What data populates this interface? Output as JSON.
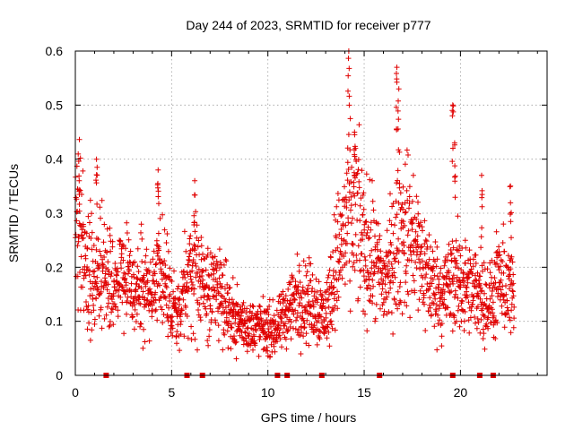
{
  "chart_data": {
    "type": "scatter",
    "title": "Day 244 of 2023, SRMTID for receiver p777",
    "xlabel": "GPS time / hours",
    "ylabel": "SRMTID / TECUs",
    "xlim": [
      0,
      24.5
    ],
    "ylim": [
      0,
      0.6
    ],
    "x_ticks": [
      0,
      5,
      10,
      15,
      20
    ],
    "x_tick_labels": [
      "0",
      "5",
      "10",
      "15",
      "20"
    ],
    "y_ticks": [
      0,
      0.1,
      0.2,
      0.3,
      0.4,
      0.5,
      0.6
    ],
    "y_tick_labels": [
      "0",
      "0.1",
      "0.2",
      "0.3",
      "0.4",
      "0.5",
      "0.6"
    ],
    "grid": true,
    "marker": "plus",
    "color": "#e00000",
    "series": [
      {
        "name": "SRMTID",
        "profile": [
          [
            0.0,
            0.26
          ],
          [
            0.25,
            0.3
          ],
          [
            0.5,
            0.22
          ],
          [
            1.0,
            0.17
          ],
          [
            1.5,
            0.2
          ],
          [
            2.0,
            0.16
          ],
          [
            2.5,
            0.19
          ],
          [
            3.0,
            0.15
          ],
          [
            3.5,
            0.17
          ],
          [
            4.0,
            0.16
          ],
          [
            4.5,
            0.2
          ],
          [
            5.0,
            0.12
          ],
          [
            5.5,
            0.13
          ],
          [
            6.0,
            0.19
          ],
          [
            6.5,
            0.17
          ],
          [
            7.0,
            0.15
          ],
          [
            7.5,
            0.17
          ],
          [
            8.0,
            0.12
          ],
          [
            8.5,
            0.1
          ],
          [
            9.0,
            0.09
          ],
          [
            9.5,
            0.09
          ],
          [
            10.0,
            0.085
          ],
          [
            10.5,
            0.085
          ],
          [
            11.0,
            0.12
          ],
          [
            11.5,
            0.14
          ],
          [
            12.0,
            0.14
          ],
          [
            12.5,
            0.13
          ],
          [
            13.0,
            0.11
          ],
          [
            13.5,
            0.2
          ],
          [
            14.0,
            0.27
          ],
          [
            14.5,
            0.3
          ],
          [
            15.0,
            0.24
          ],
          [
            15.5,
            0.21
          ],
          [
            16.0,
            0.17
          ],
          [
            16.5,
            0.22
          ],
          [
            17.0,
            0.27
          ],
          [
            17.5,
            0.25
          ],
          [
            18.0,
            0.21
          ],
          [
            18.5,
            0.17
          ],
          [
            19.0,
            0.15
          ],
          [
            19.5,
            0.17
          ],
          [
            20.0,
            0.18
          ],
          [
            20.5,
            0.15
          ],
          [
            21.0,
            0.16
          ],
          [
            21.5,
            0.13
          ],
          [
            22.0,
            0.17
          ],
          [
            22.5,
            0.16
          ],
          [
            22.8,
            0.14
          ]
        ],
        "peaks": [
          [
            0.2,
            0.36
          ],
          [
            1.1,
            0.4
          ],
          [
            4.3,
            0.38
          ],
          [
            6.2,
            0.36
          ],
          [
            14.2,
            0.6
          ],
          [
            14.5,
            0.45
          ],
          [
            16.7,
            0.57
          ],
          [
            16.8,
            0.53
          ],
          [
            19.6,
            0.5
          ],
          [
            19.7,
            0.43
          ],
          [
            21.1,
            0.37
          ],
          [
            22.6,
            0.35
          ]
        ]
      }
    ],
    "data_gaps_at_zero": [
      1.6,
      5.8,
      6.6,
      10.5,
      11.0,
      12.8,
      15.8,
      19.6,
      21.0,
      21.7
    ]
  }
}
